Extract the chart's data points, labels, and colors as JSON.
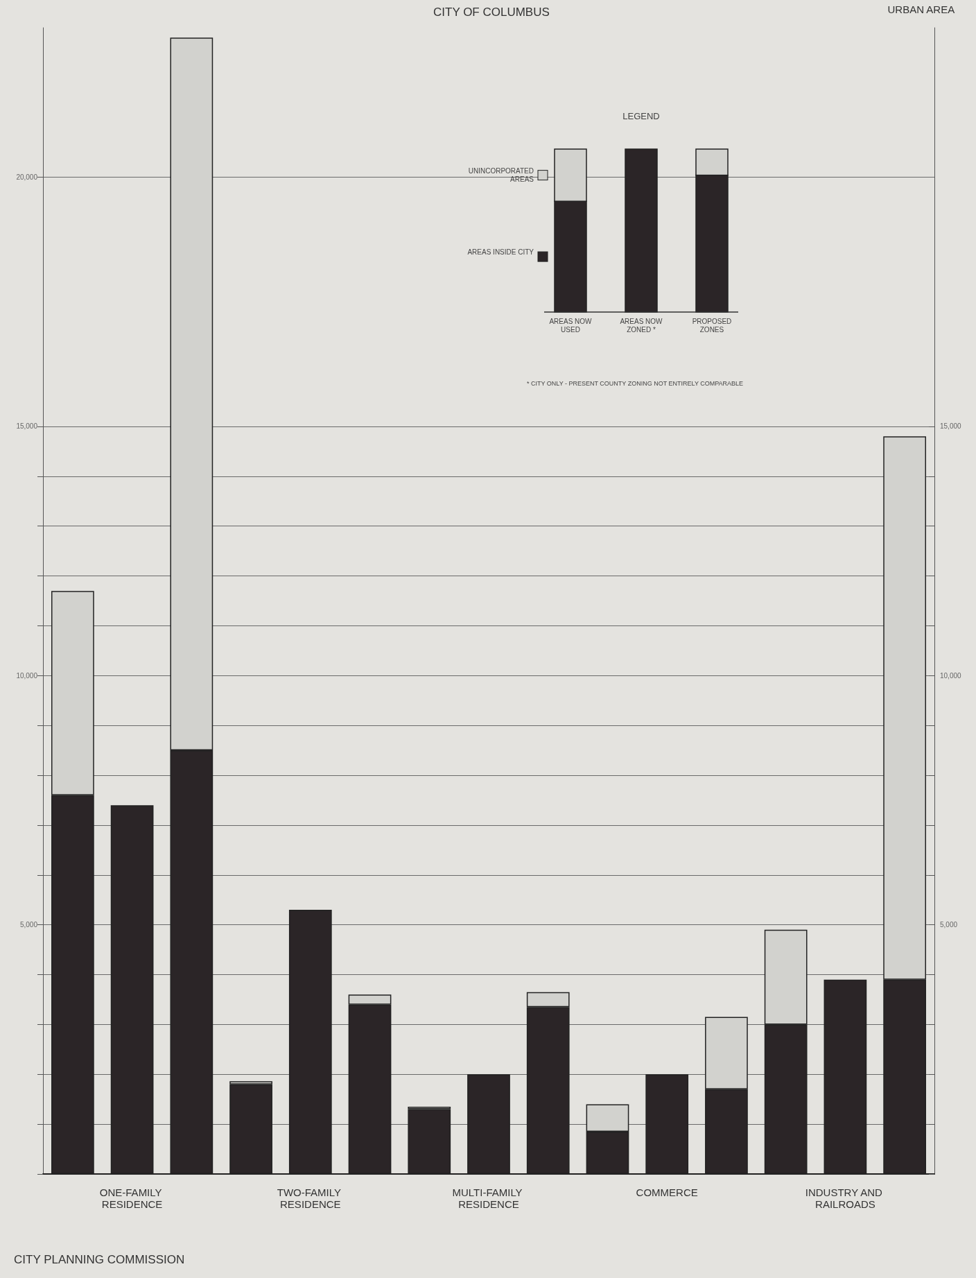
{
  "chart_data": {
    "type": "bar",
    "title": "CITY OF COLUMBUS",
    "legend_title": "LEGEND",
    "annotations": [
      "URBAN AREA",
      "AREAS NOW USED",
      "AREAS NOW ZONED *",
      "PROPOSED ZONES",
      "* CITY ONLY - PRESENT COUNTY ZONING NOT ENTIRELY COMPARABLE",
      "CITY PLANNING COMMISSION"
    ],
    "categories": [
      null,
      "ONE-FAMILY RESIDENCE",
      null,
      null,
      "TWO-FAMILY RESIDENCE",
      null,
      null,
      "MULTI-FAMILY RESIDENCE",
      null,
      null,
      "COMMERCE",
      null,
      null,
      "INDUSTRY AND RAILROADS",
      null
    ],
    "stacked": true,
    "series": [
      {
        "name": "AREAS INSIDE CITY",
        "color": "#2b2527",
        "values": [
          7600,
          7400,
          8500,
          1800,
          5300,
          3400,
          1300,
          2000,
          3350,
          850,
          2000,
          1700,
          3000,
          3900,
          3900
        ]
      },
      {
        "name": "UNINCORPORATED AREAS",
        "color": "#d2d2ce",
        "values": [
          4100,
          null,
          14300,
          60,
          null,
          200,
          50,
          null,
          300,
          550,
          null,
          1450,
          1900,
          null,
          10900
        ]
      }
    ],
    "ylim": [
      0,
      23000
    ],
    "yticks": [
      {
        "value": 0,
        "label": null
      },
      {
        "value": 1000,
        "label": null
      },
      {
        "value": 2000,
        "label": null
      },
      {
        "value": 3000,
        "label": null
      },
      {
        "value": 4000,
        "label": null
      },
      {
        "value": 5000,
        "label": "5,000"
      },
      {
        "value": 6000,
        "label": null
      },
      {
        "value": 7000,
        "label": null
      },
      {
        "value": 8000,
        "label": null
      },
      {
        "value": 9000,
        "label": null
      },
      {
        "value": 10000,
        "label": "10,000"
      },
      {
        "value": 11000,
        "label": null
      },
      {
        "value": 12000,
        "label": null
      },
      {
        "value": 13000,
        "label": null
      },
      {
        "value": 14000,
        "label": null
      },
      {
        "value": 15000,
        "label": "15,000"
      },
      {
        "value": 20000,
        "label": "20,000"
      }
    ],
    "y2lim": [
      0,
      23000
    ],
    "y2ticks": [
      {
        "value": 0,
        "label": null
      },
      {
        "value": 1000,
        "label": null
      },
      {
        "value": 2000,
        "label": null
      },
      {
        "value": 3000,
        "label": null
      },
      {
        "value": 4000,
        "label": null
      },
      {
        "value": 5000,
        "label": "5,000"
      },
      {
        "value": 6000,
        "label": null
      },
      {
        "value": 7000,
        "label": null
      },
      {
        "value": 8000,
        "label": null
      },
      {
        "value": 9000,
        "label": null
      },
      {
        "value": 10000,
        "label": "10,000"
      },
      {
        "value": 11000,
        "label": null
      },
      {
        "value": 12000,
        "label": null
      },
      {
        "value": 13000,
        "label": null
      },
      {
        "value": 14000,
        "label": null
      },
      {
        "value": 15000,
        "label": "15,000"
      }
    ],
    "grid": true,
    "legend": "top"
  }
}
